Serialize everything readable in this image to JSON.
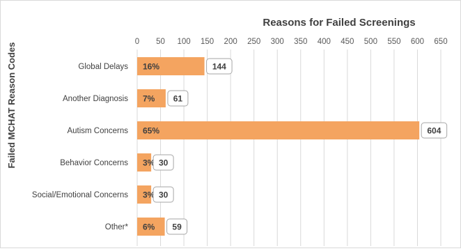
{
  "chart_data": {
    "type": "bar",
    "orientation": "horizontal",
    "title": "Reasons for Failed Screenings",
    "xlabel": "",
    "ylabel": "Failed MCHAT Reason Codes",
    "xlim": [
      0,
      650
    ],
    "x_ticks": [
      0,
      50,
      100,
      150,
      200,
      250,
      300,
      350,
      400,
      450,
      500,
      550,
      600,
      650
    ],
    "x_axis_position": "top",
    "grid": true,
    "bar_color": "#F4A460",
    "categories": [
      "Global Delays",
      "Another Diagnosis",
      "Autism Concerns",
      "Behavior Concerns",
      "Social/Emotional Concerns",
      "Other*"
    ],
    "values": [
      144,
      61,
      604,
      30,
      30,
      59
    ],
    "percent_labels": [
      "16%",
      "7%",
      "65%",
      "3%",
      "3%",
      "6%"
    ]
  }
}
